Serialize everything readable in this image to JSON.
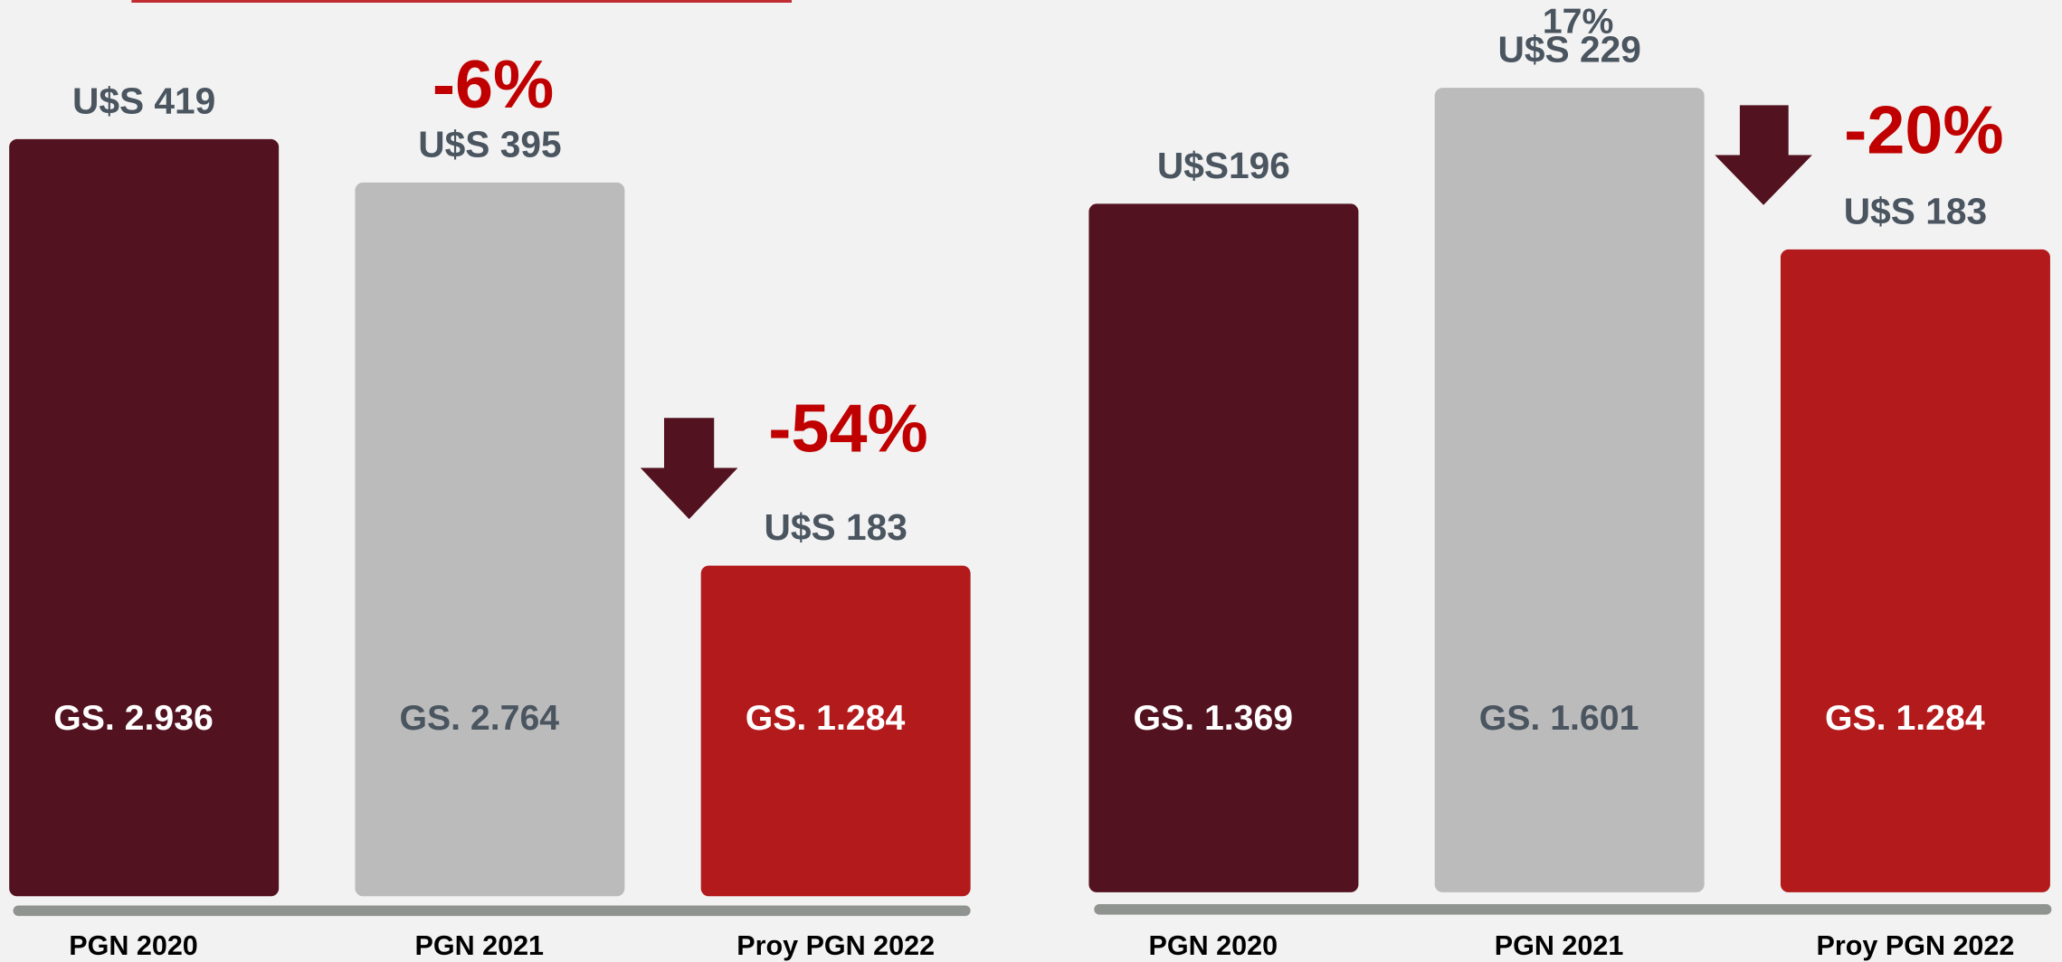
{
  "chart_data": [
    {
      "type": "bar",
      "categories": [
        "PGN 2020",
        "PGN 2021",
        "Proy PGN 2022"
      ],
      "values": [
        419,
        395,
        183
      ],
      "value_labels": [
        "U$S 419",
        "U$S 395",
        "U$S 183"
      ],
      "inner_labels": [
        "GS. 2.936",
        "GS. 2.764",
        "GS. 1.284"
      ],
      "colors": [
        "#52121f",
        "#bbbbbb",
        "#b31a1c"
      ],
      "ylim": [
        0,
        496
      ],
      "annotations": [
        "-6%",
        "-54%"
      ]
    },
    {
      "type": "bar",
      "categories": [
        "PGN 2020",
        "PGN 2021",
        "Proy PGN 2022"
      ],
      "values": [
        196,
        229,
        183
      ],
      "value_labels": [
        "U$S196",
        "U$S 229",
        "U$S 183"
      ],
      "inner_labels": [
        "GS. 1.369",
        "GS. 1.601",
        "GS. 1.284"
      ],
      "colors": [
        "#52121f",
        "#bbbbbb",
        "#b31a1c"
      ],
      "ylim": [
        0,
        254
      ],
      "annotations": [
        "17%",
        "-20%"
      ]
    }
  ]
}
